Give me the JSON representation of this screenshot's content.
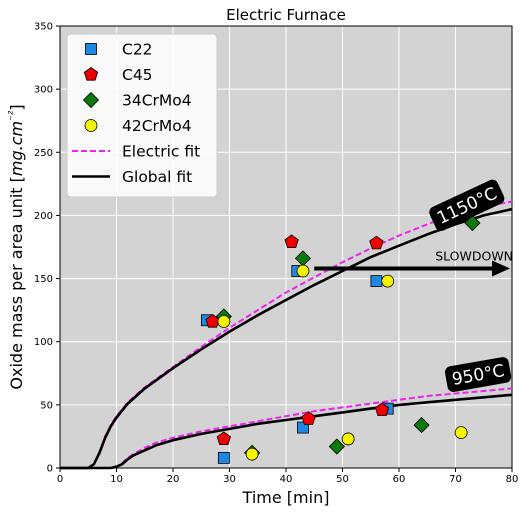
{
  "chart_data": {
    "type": "scatter",
    "title": "Electric Furnace",
    "xlabel": "Time [min]",
    "ylabel": "Oxide mass per area unit [mg.cm⁻²]",
    "xlim": [
      0,
      80
    ],
    "ylim": [
      0,
      350
    ],
    "xticks": [
      0,
      10,
      20,
      30,
      40,
      50,
      60,
      70,
      80
    ],
    "yticks": [
      0,
      50,
      100,
      150,
      200,
      250,
      300,
      350
    ],
    "grid": true,
    "background": "#d3d3d3",
    "legend_position": "top-left",
    "series": [
      {
        "name": "C22",
        "marker": "square",
        "color": "#1e88e5",
        "points": [
          [
            26,
            117
          ],
          [
            29,
            8
          ],
          [
            42,
            156
          ],
          [
            43,
            32
          ],
          [
            56,
            148
          ],
          [
            58,
            47
          ]
        ]
      },
      {
        "name": "C45",
        "marker": "pentagon",
        "color": "#ee0000",
        "points": [
          [
            27,
            116
          ],
          [
            29,
            23
          ],
          [
            41,
            179
          ],
          [
            44,
            39
          ],
          [
            56,
            178
          ],
          [
            57,
            46
          ]
        ]
      },
      {
        "name": "34CrMo4",
        "marker": "diamond",
        "color": "#0a7a0a",
        "points": [
          [
            29,
            120
          ],
          [
            34,
            12
          ],
          [
            43,
            166
          ],
          [
            49,
            17
          ],
          [
            64,
            34
          ],
          [
            73,
            194
          ]
        ]
      },
      {
        "name": "42CrMo4",
        "marker": "circle",
        "color": "#f5f500",
        "points": [
          [
            29,
            116
          ],
          [
            34,
            11
          ],
          [
            43,
            156
          ],
          [
            51,
            23
          ],
          [
            58,
            148
          ],
          [
            71,
            28
          ]
        ]
      }
    ],
    "fits": [
      {
        "name": "Electric fit",
        "style": "dashed",
        "color": "#ee22ee"
      },
      {
        "name": "Global fit",
        "style": "solid",
        "color": "#000000"
      }
    ],
    "curves": [
      {
        "fit": "Electric fit",
        "group": "1150°C",
        "points": [
          [
            0,
            0
          ],
          [
            5,
            0
          ],
          [
            6,
            3
          ],
          [
            7,
            13
          ],
          [
            8,
            25
          ],
          [
            9,
            34
          ],
          [
            10,
            41
          ],
          [
            12,
            52
          ],
          [
            15,
            64
          ],
          [
            20,
            80
          ],
          [
            25,
            96
          ],
          [
            30,
            111
          ],
          [
            35,
            125
          ],
          [
            40,
            139
          ],
          [
            45,
            151
          ],
          [
            50,
            163
          ],
          [
            55,
            174
          ],
          [
            60,
            184
          ],
          [
            65,
            193
          ],
          [
            70,
            201
          ],
          [
            75,
            207
          ],
          [
            80,
            211
          ]
        ]
      },
      {
        "fit": "Global fit",
        "group": "1150°C",
        "points": [
          [
            0,
            0
          ],
          [
            5,
            0
          ],
          [
            6,
            3
          ],
          [
            7,
            12
          ],
          [
            8,
            24
          ],
          [
            9,
            33
          ],
          [
            10,
            40
          ],
          [
            12,
            51
          ],
          [
            15,
            63
          ],
          [
            20,
            79
          ],
          [
            25,
            94
          ],
          [
            30,
            108
          ],
          [
            35,
            121
          ],
          [
            40,
            133
          ],
          [
            45,
            145
          ],
          [
            50,
            156
          ],
          [
            55,
            167
          ],
          [
            60,
            176
          ],
          [
            65,
            185
          ],
          [
            70,
            193
          ],
          [
            75,
            200
          ],
          [
            80,
            205
          ]
        ]
      },
      {
        "fit": "Electric fit",
        "group": "950°C",
        "points": [
          [
            0,
            0
          ],
          [
            9,
            0
          ],
          [
            10,
            1
          ],
          [
            11,
            4
          ],
          [
            12,
            8
          ],
          [
            13,
            11
          ],
          [
            15,
            16
          ],
          [
            17,
            20
          ],
          [
            20,
            24
          ],
          [
            25,
            29
          ],
          [
            30,
            33
          ],
          [
            35,
            37
          ],
          [
            40,
            41
          ],
          [
            45,
            45
          ],
          [
            50,
            48
          ],
          [
            55,
            51
          ],
          [
            60,
            54
          ],
          [
            65,
            57
          ],
          [
            70,
            59
          ],
          [
            75,
            61
          ],
          [
            80,
            63
          ]
        ]
      },
      {
        "fit": "Global fit",
        "group": "950°C",
        "points": [
          [
            0,
            0
          ],
          [
            9,
            0
          ],
          [
            10,
            1
          ],
          [
            11,
            3
          ],
          [
            12,
            7
          ],
          [
            13,
            10
          ],
          [
            15,
            14
          ],
          [
            17,
            18
          ],
          [
            20,
            22
          ],
          [
            25,
            27
          ],
          [
            30,
            31
          ],
          [
            35,
            35
          ],
          [
            40,
            38
          ],
          [
            45,
            41
          ],
          [
            50,
            44
          ],
          [
            55,
            47
          ],
          [
            60,
            50
          ],
          [
            65,
            52
          ],
          [
            70,
            54
          ],
          [
            75,
            56
          ],
          [
            80,
            58
          ]
        ]
      }
    ],
    "annotations": [
      {
        "text": "1150°C",
        "x": 72,
        "y": 208,
        "rotation": -25
      },
      {
        "text": "950°C",
        "x": 74,
        "y": 74,
        "rotation": -10
      },
      {
        "text": "SLOWDOWN",
        "arrow_from": [
          45,
          158
        ],
        "arrow_to": [
          80,
          158
        ]
      }
    ]
  }
}
